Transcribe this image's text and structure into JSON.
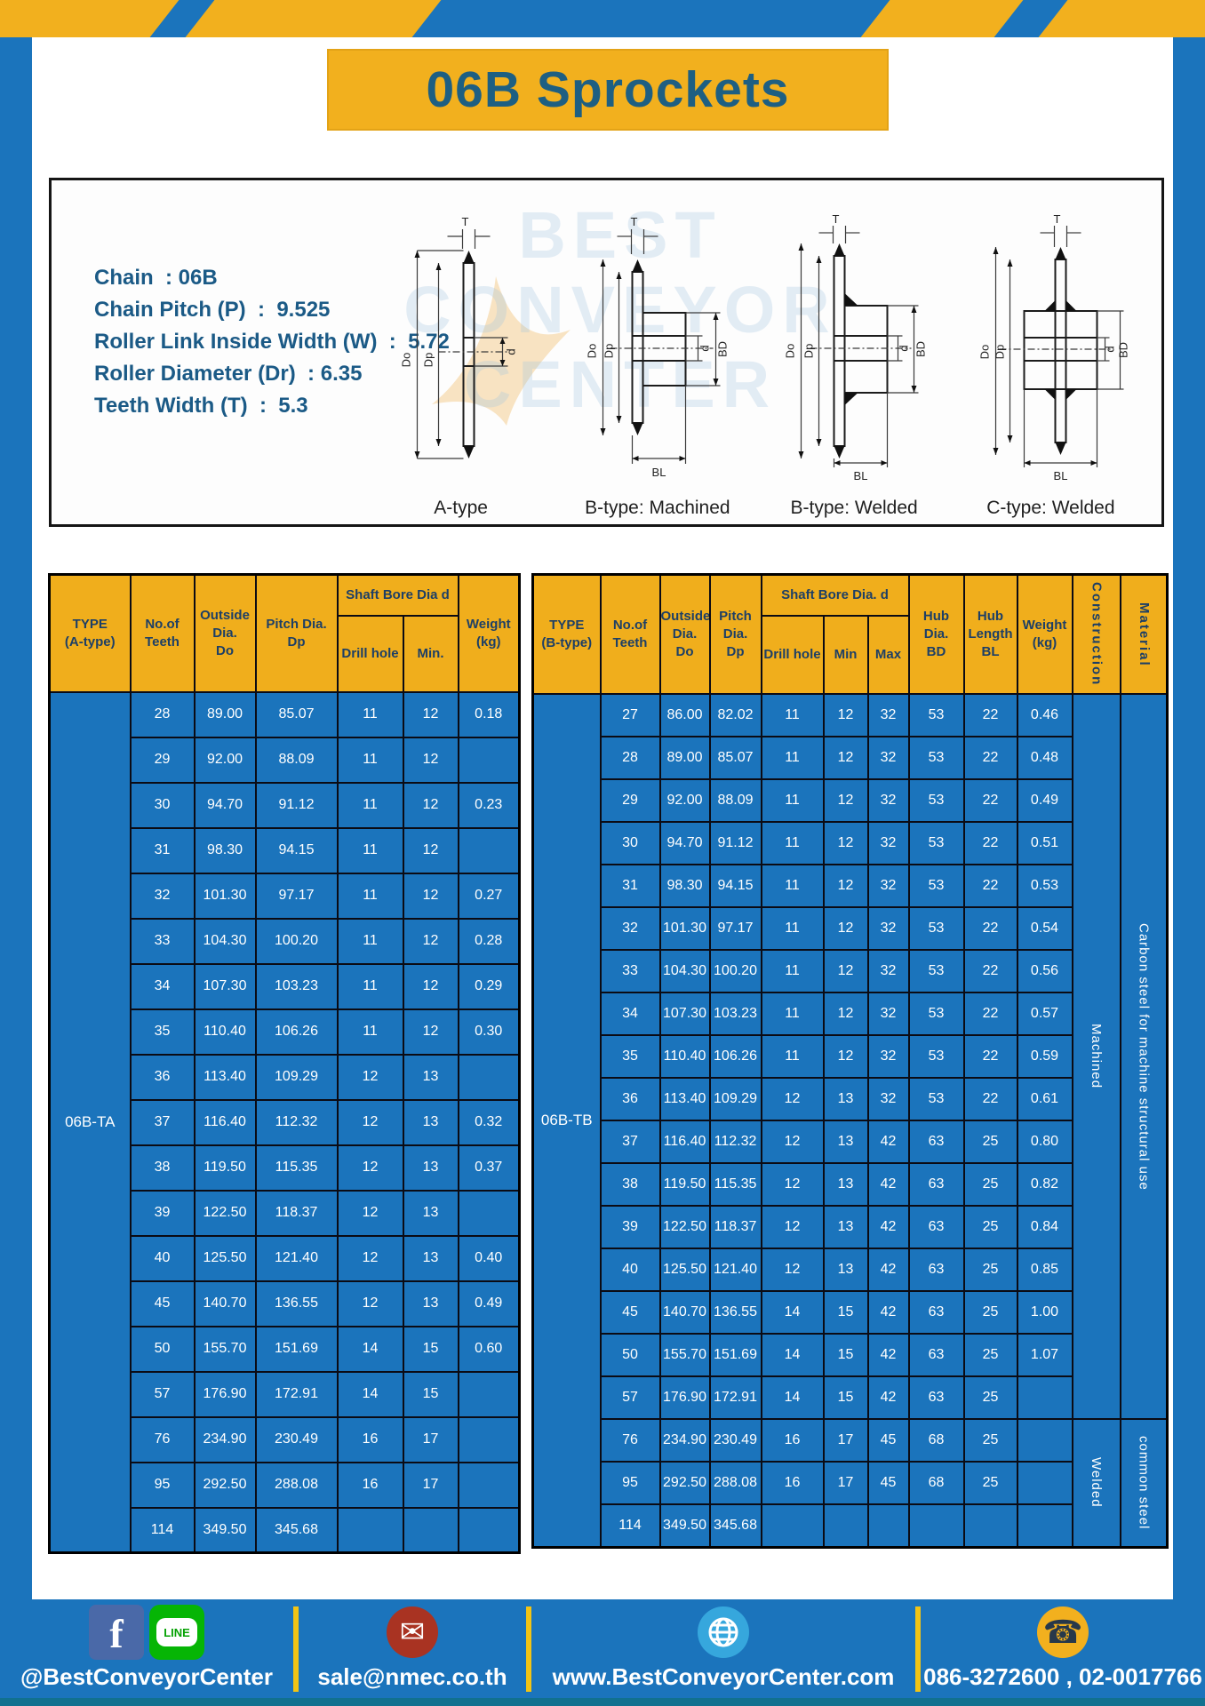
{
  "title": "06B Sprockets",
  "specs": {
    "lines": [
      "Chain  : 06B",
      "Chain Pitch (P)  :  9.525",
      "Roller Link Inside Width (W)  :  5.72",
      "Roller Diameter (Dr)  : 6.35",
      "Teeth Width (T)  :  5.3"
    ]
  },
  "watermark": {
    "lines": [
      "BEST",
      "CONVEYOR",
      "CENTER"
    ]
  },
  "diagrams": {
    "captions": [
      "A-type",
      "B-type: Machined",
      "B-type: Welded",
      "C-type: Welded"
    ],
    "dims": {
      "t": "T",
      "outer": "Do",
      "pitch": "Dp",
      "bore": "d",
      "hub": "BD",
      "hublen": "BL"
    }
  },
  "table_a": {
    "header": [
      "TYPE\n(A-type)",
      "No.of\nTeeth",
      "Outside\nDia.\nDo",
      "Pitch Dia.\nDp",
      "Shaft Bore Dia d",
      "Drill hole",
      "Min.",
      "Weight\n(kg)"
    ],
    "type_label": "06B-TA",
    "rows": [
      [
        "28",
        "89.00",
        "85.07",
        "11",
        "12",
        "0.18"
      ],
      [
        "29",
        "92.00",
        "88.09",
        "11",
        "12",
        ""
      ],
      [
        "30",
        "94.70",
        "91.12",
        "11",
        "12",
        "0.23"
      ],
      [
        "31",
        "98.30",
        "94.15",
        "11",
        "12",
        ""
      ],
      [
        "32",
        "101.30",
        "97.17",
        "11",
        "12",
        "0.27"
      ],
      [
        "33",
        "104.30",
        "100.20",
        "11",
        "12",
        "0.28"
      ],
      [
        "34",
        "107.30",
        "103.23",
        "11",
        "12",
        "0.29"
      ],
      [
        "35",
        "110.40",
        "106.26",
        "11",
        "12",
        "0.30"
      ],
      [
        "36",
        "113.40",
        "109.29",
        "12",
        "13",
        ""
      ],
      [
        "37",
        "116.40",
        "112.32",
        "12",
        "13",
        "0.32"
      ],
      [
        "38",
        "119.50",
        "115.35",
        "12",
        "13",
        "0.37"
      ],
      [
        "39",
        "122.50",
        "118.37",
        "12",
        "13",
        ""
      ],
      [
        "40",
        "125.50",
        "121.40",
        "12",
        "13",
        "0.40"
      ],
      [
        "45",
        "140.70",
        "136.55",
        "12",
        "13",
        "0.49"
      ],
      [
        "50",
        "155.70",
        "151.69",
        "14",
        "15",
        "0.60"
      ],
      [
        "57",
        "176.90",
        "172.91",
        "14",
        "15",
        ""
      ],
      [
        "76",
        "234.90",
        "230.49",
        "16",
        "17",
        ""
      ],
      [
        "95",
        "292.50",
        "288.08",
        "16",
        "17",
        ""
      ],
      [
        "114",
        "349.50",
        "345.68",
        "",
        "",
        ""
      ]
    ]
  },
  "table_b": {
    "header": [
      "TYPE\n(B-type)",
      "No.of\nTeeth",
      "Outside\nDia.\nDo",
      "Pitch\nDia.\nDp",
      "Shaft Bore Dia. d",
      "Drill hole",
      "Min",
      "Max",
      "Hub\nDia.\nBD",
      "Hub\nLength\nBL",
      "Weight\n(kg)",
      "Construction",
      "Material"
    ],
    "type_label": "06B-TB",
    "rows": [
      [
        "27",
        "86.00",
        "82.02",
        "11",
        "12",
        "32",
        "53",
        "22",
        "0.46"
      ],
      [
        "28",
        "89.00",
        "85.07",
        "11",
        "12",
        "32",
        "53",
        "22",
        "0.48"
      ],
      [
        "29",
        "92.00",
        "88.09",
        "11",
        "12",
        "32",
        "53",
        "22",
        "0.49"
      ],
      [
        "30",
        "94.70",
        "91.12",
        "11",
        "12",
        "32",
        "53",
        "22",
        "0.51"
      ],
      [
        "31",
        "98.30",
        "94.15",
        "11",
        "12",
        "32",
        "53",
        "22",
        "0.53"
      ],
      [
        "32",
        "101.30",
        "97.17",
        "11",
        "12",
        "32",
        "53",
        "22",
        "0.54"
      ],
      [
        "33",
        "104.30",
        "100.20",
        "11",
        "12",
        "32",
        "53",
        "22",
        "0.56"
      ],
      [
        "34",
        "107.30",
        "103.23",
        "11",
        "12",
        "32",
        "53",
        "22",
        "0.57"
      ],
      [
        "35",
        "110.40",
        "106.26",
        "11",
        "12",
        "32",
        "53",
        "22",
        "0.59"
      ],
      [
        "36",
        "113.40",
        "109.29",
        "12",
        "13",
        "32",
        "53",
        "22",
        "0.61"
      ],
      [
        "37",
        "116.40",
        "112.32",
        "12",
        "13",
        "42",
        "63",
        "25",
        "0.80"
      ],
      [
        "38",
        "119.50",
        "115.35",
        "12",
        "13",
        "42",
        "63",
        "25",
        "0.82"
      ],
      [
        "39",
        "122.50",
        "118.37",
        "12",
        "13",
        "42",
        "63",
        "25",
        "0.84"
      ],
      [
        "40",
        "125.50",
        "121.40",
        "12",
        "13",
        "42",
        "63",
        "25",
        "0.85"
      ],
      [
        "45",
        "140.70",
        "136.55",
        "14",
        "15",
        "42",
        "63",
        "25",
        "1.00"
      ],
      [
        "50",
        "155.70",
        "151.69",
        "14",
        "15",
        "42",
        "63",
        "25",
        "1.07"
      ],
      [
        "57",
        "176.90",
        "172.91",
        "14",
        "15",
        "42",
        "63",
        "25",
        ""
      ],
      [
        "76",
        "234.90",
        "230.49",
        "16",
        "17",
        "45",
        "68",
        "25",
        ""
      ],
      [
        "95",
        "292.50",
        "288.08",
        "16",
        "17",
        "45",
        "68",
        "25",
        ""
      ],
      [
        "114",
        "349.50",
        "345.68",
        "",
        "",
        "",
        "",
        "",
        ""
      ]
    ],
    "construction": [
      {
        "label": "Machined",
        "start": 0,
        "span": 17
      },
      {
        "label": "Welded",
        "start": 17,
        "span": 3
      }
    ],
    "material": [
      {
        "label": "Carbon steel for machine structural use",
        "start": 0,
        "span": 17
      },
      {
        "label": "common steel",
        "start": 17,
        "span": 3
      }
    ]
  },
  "footer": {
    "social_label": "@BestConveyorCenter",
    "facebook_letter": "f",
    "line_text": "LINE",
    "email_glyph": "✉",
    "email": "sale@nmec.co.th",
    "website": "www.BestConveyorCenter.com",
    "phone_glyph": "☎",
    "phone": "086-3272600 , 02-0017766"
  },
  "colors": {
    "blue": "#1b74bc",
    "yellow": "#f2b01e",
    "title_text": "#1e5f82",
    "header_text": "#1d3f66",
    "teal_strip": "#11718f"
  }
}
